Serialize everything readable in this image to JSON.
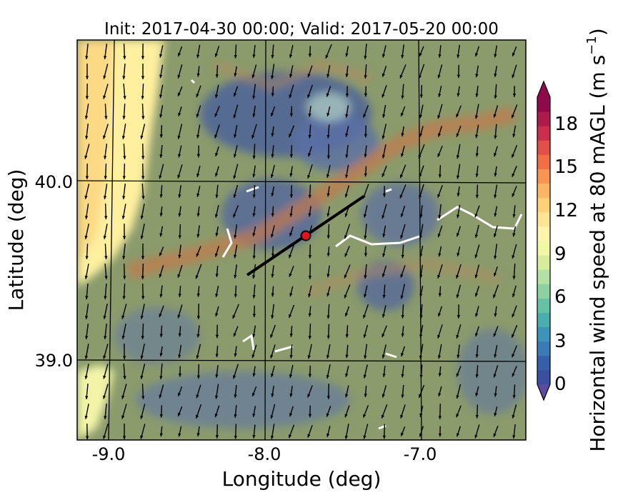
{
  "title": "Init: 2017-04-30 00:00; Valid: 2017-05-20 00:00",
  "xlabel": "Longitude (deg)",
  "ylabel": "Latitude (deg)",
  "colorbar_label": "Horizontal wind speed at 80 mAGL (m s",
  "colorbar_label_exponent": "−1",
  "colorbar_label_close": ")",
  "x_ticks": [
    {
      "value": -9.0,
      "label": "-9.0"
    },
    {
      "value": -8.0,
      "label": "-8.0"
    },
    {
      "value": -7.0,
      "label": "-7.0"
    }
  ],
  "y_ticks": [
    {
      "value": 40.0,
      "label": "40.0"
    },
    {
      "value": 39.0,
      "label": "39.0"
    }
  ],
  "colorbar_ticks": [
    {
      "value": 0,
      "label": "0"
    },
    {
      "value": 3,
      "label": "3"
    },
    {
      "value": 6,
      "label": "6"
    },
    {
      "value": 9,
      "label": "9"
    },
    {
      "value": 12,
      "label": "12"
    },
    {
      "value": 15,
      "label": "15"
    },
    {
      "value": 18,
      "label": "18"
    }
  ],
  "colors": {
    "background_land": "#8a9a6a",
    "ocean_band": "#f9d98a",
    "coast_band": "#fff3a8",
    "low_wind": "#4a5f9a",
    "ridge": "#c0754a",
    "transect": "#000000",
    "point_marker": "#e0141b"
  },
  "chart_data": {
    "type": "heatmap",
    "title": "Init: 2017-04-30 00:00; Valid: 2017-05-20 00:00",
    "xlabel": "Longitude (deg)",
    "ylabel": "Latitude (deg)",
    "xlim": [
      -9.25,
      -6.35
    ],
    "ylim": [
      38.55,
      40.8
    ],
    "grid": true,
    "colorbar": {
      "label": "Horizontal wind speed at 80 mAGL (m s−1)",
      "range": [
        0,
        20
      ],
      "ticks": [
        0,
        3,
        6,
        9,
        12,
        15,
        18
      ],
      "colors": [
        "#3a4fa0",
        "#3560a8",
        "#3a7ab5",
        "#3d94b8",
        "#4aaeae",
        "#66c2a5",
        "#8dd1a2",
        "#b3e0a3",
        "#d6ee9b",
        "#f0f8a6",
        "#fff5ae",
        "#fee593",
        "#fdd07a",
        "#fcb565",
        "#f99455",
        "#f26f46",
        "#e34f49",
        "#cc2f4b",
        "#ad1a4c",
        "#8f0a4b"
      ]
    },
    "transect": {
      "start": [
        -8.12,
        39.48
      ],
      "end": [
        -7.38,
        39.9
      ]
    },
    "marker": {
      "lon": -7.74,
      "lat": 39.69
    },
    "wind_vector_field": "arrows pointing mostly southward (northerly flow) across the domain"
  }
}
